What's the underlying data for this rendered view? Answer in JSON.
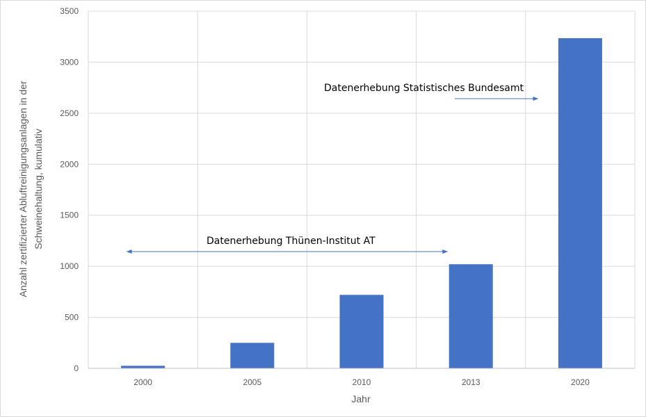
{
  "chart_data": {
    "type": "bar",
    "categories": [
      "2000",
      "2005",
      "2010",
      "2013",
      "2020"
    ],
    "values": [
      25,
      250,
      720,
      1020,
      3235
    ],
    "ylim": [
      0,
      3500
    ],
    "yticks": [
      0,
      500,
      1000,
      1500,
      2000,
      2500,
      3000,
      3500
    ],
    "xlabel": "Jahr",
    "ylabel_lines": [
      "Anzahl zertifizierter Abluftreinigungsanlagen in der",
      "Schweinehaltung, kumulativ"
    ],
    "grid": true,
    "bar_color": "#4472c4",
    "annotations": [
      {
        "text": "Datenerhebung Thünen-Institut AT",
        "arrow": "both",
        "from_category": "2000",
        "to_category": "2013"
      },
      {
        "text": "Datenerhebung Statistisches Bundesamt",
        "arrow": "right",
        "to_category": "2020"
      }
    ]
  }
}
